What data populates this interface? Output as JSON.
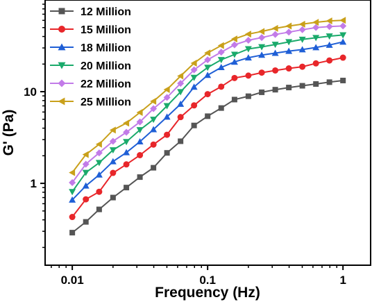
{
  "chart_data": {
    "type": "line",
    "xlabel": "Frequency (Hz)",
    "ylabel": "G' (Pa)",
    "xscale": "log",
    "yscale": "log",
    "xlim": [
      0.0063,
      1.6
    ],
    "ylim": [
      0.128,
      100
    ],
    "xticks": [
      {
        "value": 0.01,
        "label": "0.01"
      },
      {
        "value": 0.1,
        "label": "0.1"
      },
      {
        "value": 1,
        "label": "1"
      }
    ],
    "yticks": [
      {
        "value": 1,
        "label": "1"
      },
      {
        "value": 10,
        "label": "10"
      }
    ],
    "grid": false,
    "legend_position": "top-left",
    "x": [
      0.01,
      0.0126,
      0.0158,
      0.02,
      0.0251,
      0.0316,
      0.0398,
      0.0501,
      0.0631,
      0.0794,
      0.1,
      0.126,
      0.158,
      0.2,
      0.251,
      0.316,
      0.398,
      0.501,
      0.631,
      0.794,
      1.0
    ],
    "series": [
      {
        "name": "12 Million",
        "color": "#555555",
        "marker": "square",
        "values": [
          0.29,
          0.38,
          0.52,
          0.7,
          0.9,
          1.17,
          1.48,
          2.15,
          2.88,
          4.28,
          5.4,
          6.63,
          8.2,
          8.92,
          9.85,
          10.51,
          11.1,
          11.6,
          12.13,
          12.7,
          13.24
        ]
      },
      {
        "name": "15 Million",
        "color": "#e8262a",
        "marker": "circle",
        "values": [
          0.43,
          0.67,
          0.81,
          1.3,
          1.61,
          2.03,
          2.65,
          3.39,
          5.28,
          7.09,
          9.4,
          11.34,
          14.1,
          14.98,
          16.14,
          17.05,
          17.94,
          18.73,
          20.36,
          21.9,
          23.5
        ]
      },
      {
        "name": "18 Million",
        "color": "#1f5fd6",
        "marker": "triangle-up",
        "values": [
          0.66,
          0.94,
          1.24,
          1.73,
          2.17,
          2.85,
          3.87,
          5.31,
          7.33,
          11.25,
          15.15,
          18.41,
          21.1,
          23.46,
          25.11,
          26.36,
          27.71,
          28.81,
          30.33,
          32.28,
          34.9
        ]
      },
      {
        "name": "20 Million",
        "color": "#1aaa6b",
        "marker": "triangle-down",
        "values": [
          0.81,
          1.31,
          1.68,
          2.31,
          2.84,
          3.83,
          4.97,
          7.0,
          9.95,
          14.25,
          18.36,
          22.29,
          25.45,
          29.23,
          30.75,
          32.68,
          34.9,
          37.12,
          38.74,
          40.33,
          41.5
        ]
      },
      {
        "name": "22 Million",
        "color": "#c27be8",
        "marker": "diamond",
        "values": [
          1.02,
          1.62,
          2.15,
          2.88,
          3.61,
          4.68,
          6.53,
          8.64,
          12.31,
          17.29,
          22.29,
          27.0,
          32.43,
          36.4,
          38.95,
          42.05,
          44.62,
          47.44,
          50.06,
          51.3,
          52.1
        ]
      },
      {
        "name": "25 Million",
        "color": "#c9a01b",
        "marker": "triangle-left",
        "values": [
          1.31,
          2.06,
          2.67,
          3.81,
          4.54,
          5.93,
          7.86,
          10.55,
          14.82,
          20.46,
          26.45,
          31.86,
          37.61,
          42.47,
          45.37,
          49.02,
          52.02,
          54.49,
          57.14,
          59.14,
          60.1
        ]
      }
    ]
  }
}
